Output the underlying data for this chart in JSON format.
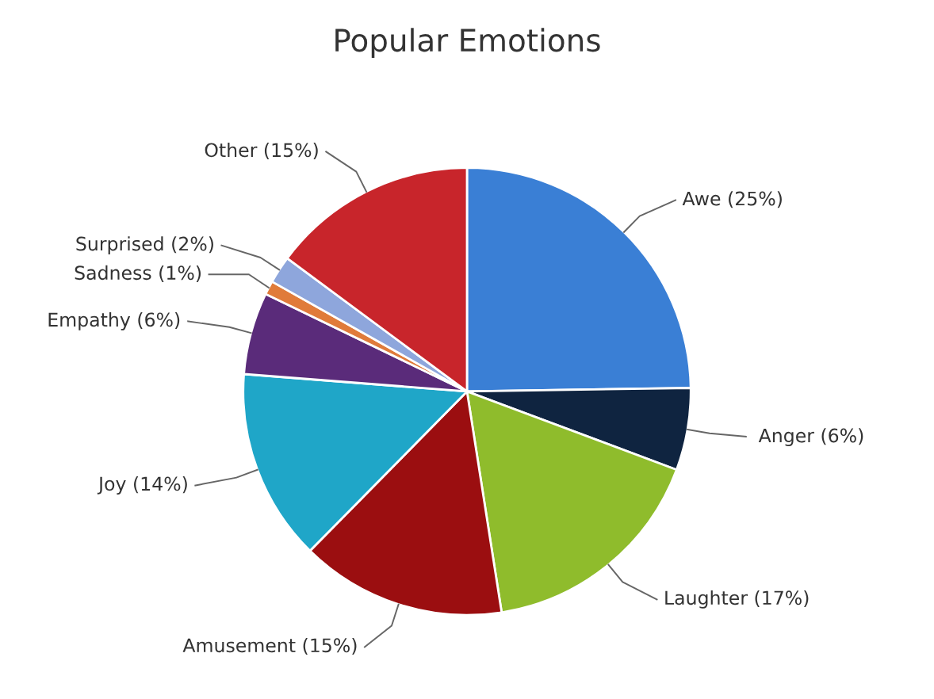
{
  "chart_data": {
    "type": "pie",
    "title": "Popular Emotions",
    "categories": [
      "Awe (25%)",
      "Anger (6%)",
      "Laughter (17%)",
      "Amusement (15%)",
      "Joy (14%)",
      "Empathy (6%)",
      "Sadness (1%)",
      "Surprised (2%)",
      "Other (15%)"
    ],
    "values": [
      25,
      6,
      17,
      15,
      14,
      6,
      1,
      2,
      15
    ],
    "colors": [
      "#3a7fd5",
      "#0f2440",
      "#8fbc2c",
      "#9b0e10",
      "#1fa6c8",
      "#5a2b7a",
      "#e07b3a",
      "#8ea6dc",
      "#c8252b"
    ]
  }
}
